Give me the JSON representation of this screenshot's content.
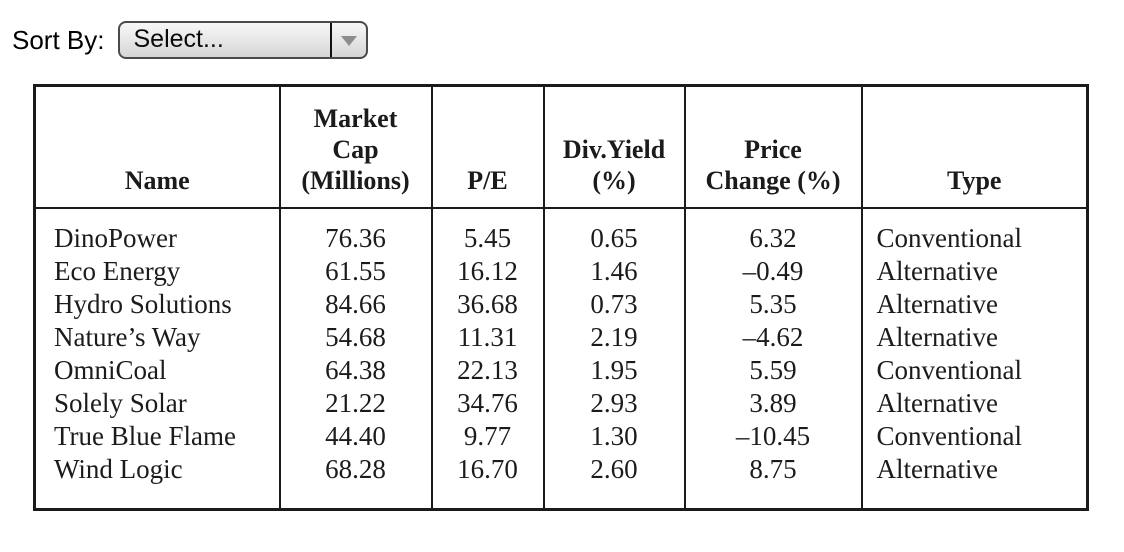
{
  "sort_control": {
    "label": "Sort By:",
    "selected_value": "Select...",
    "arrow_icon": "triangle-down",
    "colors": {
      "border": "#4a4a4a",
      "background_top": "#f7f7f7",
      "background_bottom": "#d6d6d6",
      "divider": "#111111",
      "arrow": "#8d8d8d"
    }
  },
  "table": {
    "border_color": "#1b1b1b",
    "text_color": "#1b1b1b",
    "headers": {
      "name": "Name",
      "market_cap": "Market\nCap\n(Millions)",
      "pe": "P/E",
      "div_yield": "Div.Yield\n(%)",
      "price_change": "Price\nChange (%)",
      "type": "Type"
    },
    "rows": [
      {
        "name": "DinoPower",
        "market_cap": "76.36",
        "pe": "5.45",
        "div_yield": "0.65",
        "price_change": "6.32",
        "type": "Conventional"
      },
      {
        "name": "Eco Energy",
        "market_cap": "61.55",
        "pe": "16.12",
        "div_yield": "1.46",
        "price_change": "–0.49",
        "type": "Alternative"
      },
      {
        "name": "Hydro Solutions",
        "market_cap": "84.66",
        "pe": "36.68",
        "div_yield": "0.73",
        "price_change": "5.35",
        "type": "Alternative"
      },
      {
        "name": "Nature’s Way",
        "market_cap": "54.68",
        "pe": "11.31",
        "div_yield": "2.19",
        "price_change": "–4.62",
        "type": "Alternative"
      },
      {
        "name": "OmniCoal",
        "market_cap": "64.38",
        "pe": "22.13",
        "div_yield": "1.95",
        "price_change": "5.59",
        "type": "Conventional"
      },
      {
        "name": "Solely Solar",
        "market_cap": "21.22",
        "pe": "34.76",
        "div_yield": "2.93",
        "price_change": "3.89",
        "type": "Alternative"
      },
      {
        "name": "True Blue Flame",
        "market_cap": "44.40",
        "pe": "9.77",
        "div_yield": "1.30",
        "price_change": "–10.45",
        "type": "Conventional"
      },
      {
        "name": "Wind Logic",
        "market_cap": "68.28",
        "pe": "16.70",
        "div_yield": "2.60",
        "price_change": "8.75",
        "type": "Alternative"
      }
    ]
  }
}
